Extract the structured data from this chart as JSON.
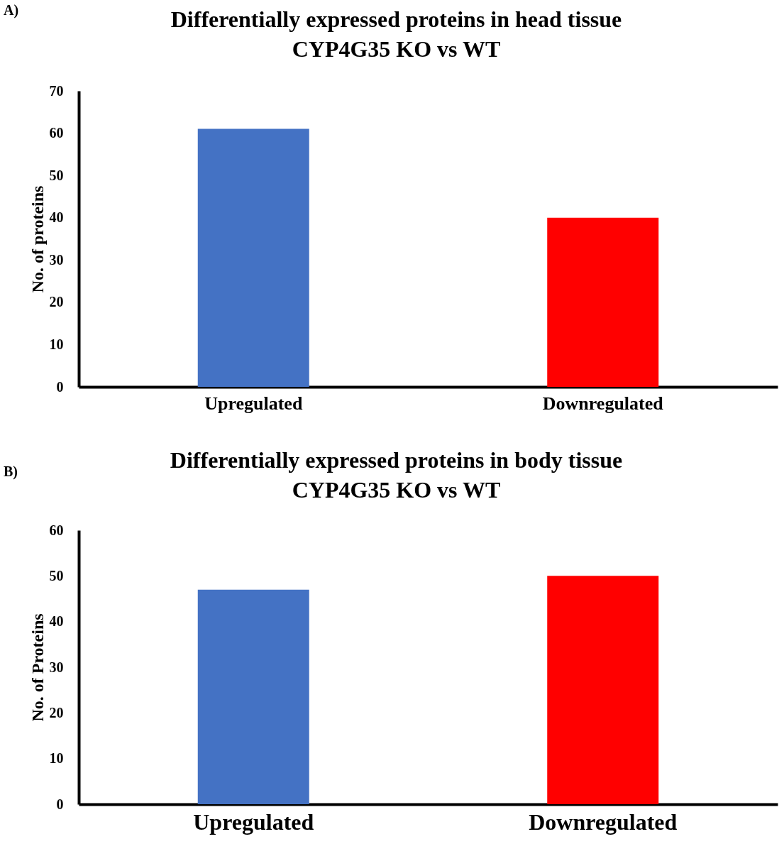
{
  "chart_data": [
    {
      "type": "bar",
      "title": [
        "Differentially expressed proteins in head tissue",
        "CYP4G35 KO vs WT"
      ],
      "ylabel": "No. of proteins",
      "categories": [
        "Upregulated",
        "Downregulated"
      ],
      "values": [
        61,
        40
      ],
      "colors": [
        "#4472c4",
        "#ff0000"
      ],
      "ylim": [
        0,
        70
      ],
      "yticks": [
        0,
        10,
        20,
        30,
        40,
        50,
        60,
        70
      ],
      "grid": false,
      "annotations": [
        "A)"
      ]
    },
    {
      "type": "bar",
      "title": [
        "Differentially expressed proteins in body tissue",
        "CYP4G35 KO vs WT"
      ],
      "ylabel": "No. of Proteins",
      "categories": [
        "Upregulated",
        "Downregulated"
      ],
      "values": [
        47,
        50
      ],
      "colors": [
        "#4472c4",
        "#ff0000"
      ],
      "ylim": [
        0,
        60
      ],
      "yticks": [
        0,
        10,
        20,
        30,
        40,
        50,
        60
      ],
      "grid": false,
      "annotations": [
        "B)"
      ]
    }
  ]
}
